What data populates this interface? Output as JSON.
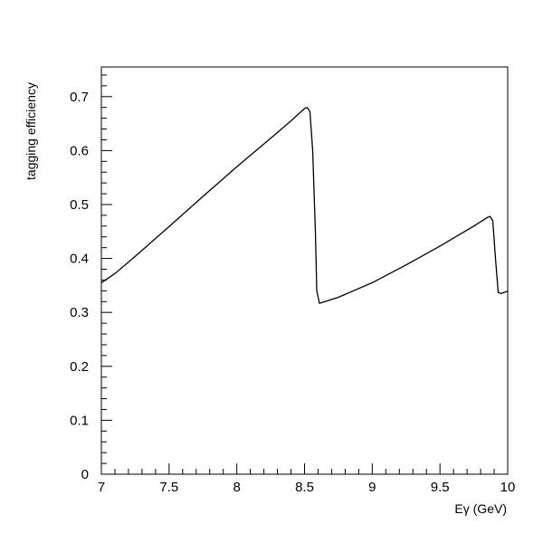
{
  "chart_data": {
    "type": "line",
    "title": "",
    "xlabel": "Eγ (GeV)",
    "ylabel": "tagging efficiency",
    "xlim": [
      7,
      10
    ],
    "ylim": [
      0,
      0.755
    ],
    "grid": false,
    "x_ticks": [
      7,
      7.5,
      8,
      8.5,
      9,
      9.5,
      10
    ],
    "x_tick_labels": [
      "7",
      "7.5",
      "8",
      "8.5",
      "9",
      "9.5",
      "10"
    ],
    "y_ticks": [
      0,
      0.1,
      0.2,
      0.3,
      0.4,
      0.5,
      0.6,
      0.7
    ],
    "y_tick_labels": [
      "0",
      "0.1",
      "0.2",
      "0.3",
      "0.4",
      "0.5",
      "0.6",
      "0.7"
    ],
    "series": [
      {
        "color": "#000000",
        "points": [
          [
            7.0,
            0.355
          ],
          [
            7.1,
            0.372
          ],
          [
            7.25,
            0.404
          ],
          [
            7.5,
            0.459
          ],
          [
            7.75,
            0.515
          ],
          [
            8.0,
            0.57
          ],
          [
            8.25,
            0.623
          ],
          [
            8.4,
            0.655
          ],
          [
            8.5,
            0.678
          ],
          [
            8.52,
            0.68
          ],
          [
            8.54,
            0.672
          ],
          [
            8.56,
            0.6
          ],
          [
            8.58,
            0.45
          ],
          [
            8.59,
            0.34
          ],
          [
            8.61,
            0.317
          ],
          [
            8.65,
            0.32
          ],
          [
            8.75,
            0.328
          ],
          [
            9.0,
            0.355
          ],
          [
            9.25,
            0.388
          ],
          [
            9.5,
            0.423
          ],
          [
            9.75,
            0.46
          ],
          [
            9.85,
            0.476
          ],
          [
            9.87,
            0.478
          ],
          [
            9.89,
            0.47
          ],
          [
            9.91,
            0.4
          ],
          [
            9.93,
            0.337
          ],
          [
            9.95,
            0.335
          ],
          [
            10.0,
            0.339
          ]
        ]
      }
    ]
  }
}
